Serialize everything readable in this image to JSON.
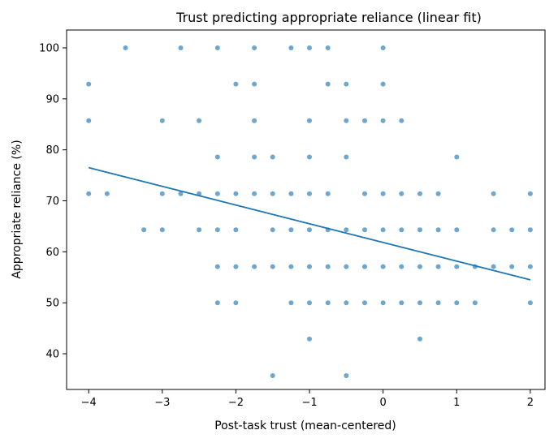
{
  "chart_data": {
    "type": "scatter",
    "title": "Trust predicting appropriate reliance (linear fit)",
    "xlabel": "Post-task trust (mean-centered)",
    "ylabel": "Appropriate reliance (%)",
    "xlim": [
      -4.3,
      2.2
    ],
    "ylim": [
      33,
      103.5
    ],
    "xticks": [
      -4,
      -3,
      -2,
      -1,
      0,
      1,
      2
    ],
    "xtick_labels": [
      "−4",
      "−3",
      "−2",
      "−1",
      "0",
      "1",
      "2"
    ],
    "yticks": [
      40,
      50,
      60,
      70,
      80,
      90,
      100
    ],
    "ytick_labels": [
      "40",
      "50",
      "60",
      "70",
      "80",
      "90",
      "100"
    ],
    "grid": false,
    "colors": {
      "points": "#1f77b4",
      "line": "#1f77b4"
    },
    "series": [
      {
        "kind": "scatter",
        "points": [
          [
            -4,
            92.9
          ],
          [
            -4,
            85.7
          ],
          [
            -4,
            71.4
          ],
          [
            -3.75,
            71.4
          ],
          [
            -3.5,
            100
          ],
          [
            -3.25,
            64.3
          ],
          [
            -3,
            85.7
          ],
          [
            -3,
            71.4
          ],
          [
            -3,
            64.3
          ],
          [
            -2.75,
            100
          ],
          [
            -2.75,
            71.4
          ],
          [
            -2.5,
            85.7
          ],
          [
            -2.5,
            71.4
          ],
          [
            -2.5,
            64.3
          ],
          [
            -2.25,
            100
          ],
          [
            -2.25,
            78.6
          ],
          [
            -2.25,
            71.4
          ],
          [
            -2.25,
            64.3
          ],
          [
            -2.25,
            57.1
          ],
          [
            -2.25,
            50
          ],
          [
            -2,
            92.9
          ],
          [
            -2,
            71.4
          ],
          [
            -2,
            64.3
          ],
          [
            -2,
            57.1
          ],
          [
            -2,
            50
          ],
          [
            -1.75,
            100
          ],
          [
            -1.75,
            92.9
          ],
          [
            -1.75,
            85.7
          ],
          [
            -1.75,
            78.6
          ],
          [
            -1.75,
            71.4
          ],
          [
            -1.75,
            57.1
          ],
          [
            -1.5,
            78.6
          ],
          [
            -1.5,
            71.4
          ],
          [
            -1.5,
            64.3
          ],
          [
            -1.5,
            57.1
          ],
          [
            -1.5,
            35.7
          ],
          [
            -1.25,
            100
          ],
          [
            -1.25,
            71.4
          ],
          [
            -1.25,
            64.3
          ],
          [
            -1.25,
            57.1
          ],
          [
            -1.25,
            50
          ],
          [
            -1,
            100
          ],
          [
            -1,
            85.7
          ],
          [
            -1,
            78.6
          ],
          [
            -1,
            71.4
          ],
          [
            -1,
            64.3
          ],
          [
            -1,
            57.1
          ],
          [
            -1,
            50
          ],
          [
            -1,
            42.9
          ],
          [
            -0.75,
            100
          ],
          [
            -0.75,
            92.9
          ],
          [
            -0.75,
            71.4
          ],
          [
            -0.75,
            64.3
          ],
          [
            -0.75,
            57.1
          ],
          [
            -0.75,
            50
          ],
          [
            -0.5,
            92.9
          ],
          [
            -0.5,
            85.7
          ],
          [
            -0.5,
            78.6
          ],
          [
            -0.5,
            64.3
          ],
          [
            -0.5,
            57.1
          ],
          [
            -0.5,
            50
          ],
          [
            -0.5,
            35.7
          ],
          [
            -0.25,
            85.7
          ],
          [
            -0.25,
            71.4
          ],
          [
            -0.25,
            64.3
          ],
          [
            -0.25,
            57.1
          ],
          [
            -0.25,
            50
          ],
          [
            0,
            100
          ],
          [
            0,
            92.9
          ],
          [
            0,
            85.7
          ],
          [
            0,
            71.4
          ],
          [
            0,
            64.3
          ],
          [
            0,
            57.1
          ],
          [
            0,
            50
          ],
          [
            0.25,
            85.7
          ],
          [
            0.25,
            71.4
          ],
          [
            0.25,
            64.3
          ],
          [
            0.25,
            57.1
          ],
          [
            0.25,
            50
          ],
          [
            0.5,
            71.4
          ],
          [
            0.5,
            64.3
          ],
          [
            0.5,
            57.1
          ],
          [
            0.5,
            50
          ],
          [
            0.5,
            42.9
          ],
          [
            0.75,
            71.4
          ],
          [
            0.75,
            64.3
          ],
          [
            0.75,
            57.1
          ],
          [
            0.75,
            50
          ],
          [
            1,
            78.6
          ],
          [
            1,
            64.3
          ],
          [
            1,
            57.1
          ],
          [
            1,
            50
          ],
          [
            1.25,
            57.1
          ],
          [
            1.25,
            50
          ],
          [
            1.5,
            71.4
          ],
          [
            1.5,
            64.3
          ],
          [
            1.5,
            57.1
          ],
          [
            1.75,
            64.3
          ],
          [
            1.75,
            57.1
          ],
          [
            2,
            71.4
          ],
          [
            2,
            64.3
          ],
          [
            2,
            57.1
          ],
          [
            2,
            50
          ]
        ]
      },
      {
        "kind": "fit-line",
        "points": [
          [
            -4,
            76.5
          ],
          [
            2,
            54.5
          ]
        ]
      }
    ]
  }
}
